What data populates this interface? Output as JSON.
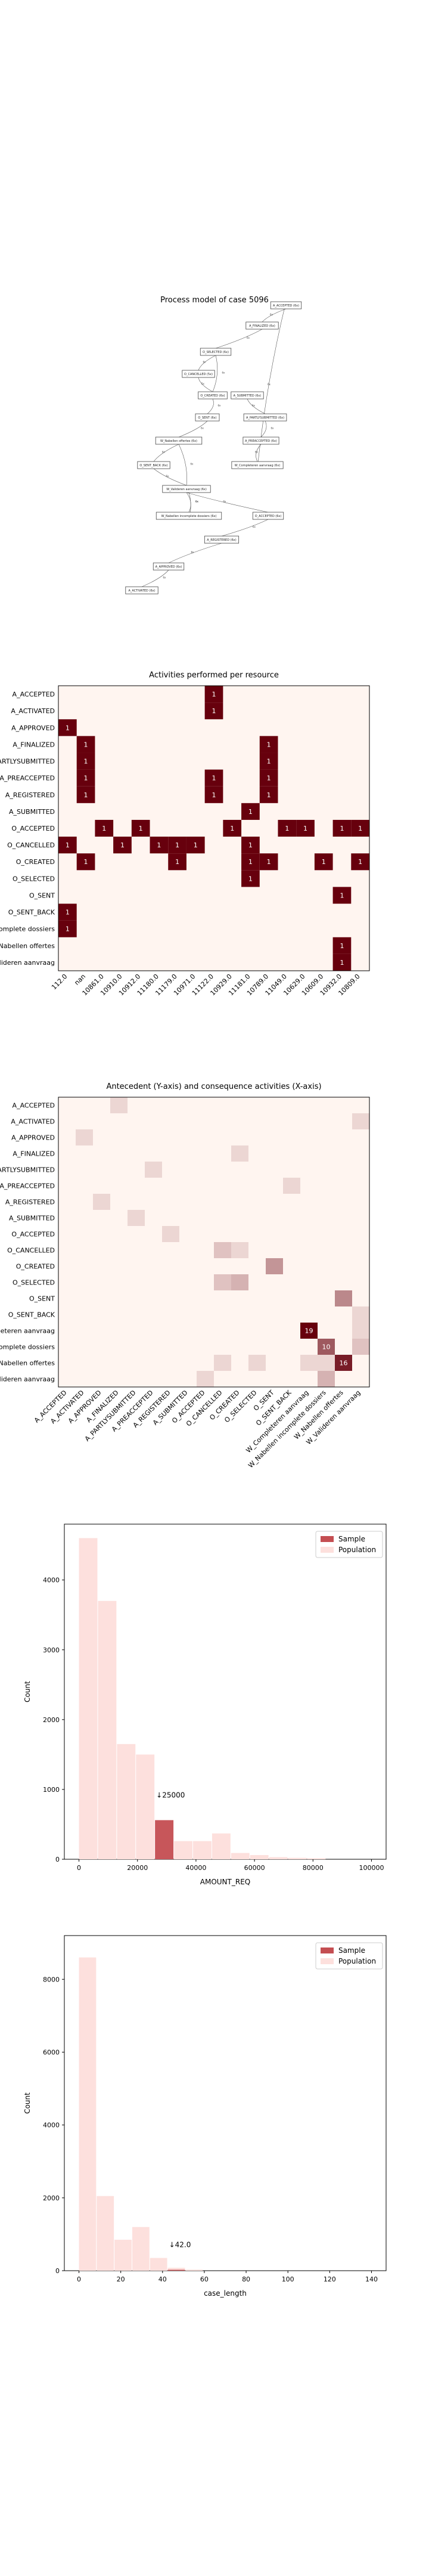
{
  "process_model": {
    "title": "Process model of case 5096",
    "nodes": [
      {
        "id": "n1",
        "label": "A_ACCEPTED (6x)"
      },
      {
        "id": "n2",
        "label": "A_FINALIZED (6x)"
      },
      {
        "id": "n3",
        "label": "O_SELECTED (6x)"
      },
      {
        "id": "n4",
        "label": "O_CANCELLED (5x)"
      },
      {
        "id": "n5",
        "label": "O_CREATED (6x)"
      },
      {
        "id": "n6",
        "label": "O_SENT (6x)"
      },
      {
        "id": "n7",
        "label": "A_SUBMITTED (6x)"
      },
      {
        "id": "n8",
        "label": "A_PARTLYSUBMITTED (6x)"
      },
      {
        "id": "n9",
        "label": "A_PREACCEPTED (6x)"
      },
      {
        "id": "n10",
        "label": "W_Nabellen offertes (6x)"
      },
      {
        "id": "n11",
        "label": "W_Completeren aanvraag (6x)"
      },
      {
        "id": "n12",
        "label": "O_SENT_BACK (6x)"
      },
      {
        "id": "n13",
        "label": "W_Valideren aanvraag (6x)"
      },
      {
        "id": "n14",
        "label": "W_Nabellen incomplete dossiers (6x)"
      },
      {
        "id": "n15",
        "label": "O_ACCEPTED (6x)"
      },
      {
        "id": "n16",
        "label": "A_REGISTERED (6x)"
      },
      {
        "id": "n17",
        "label": "A_APPROVED (6x)"
      },
      {
        "id": "n18",
        "label": "A_ACTIVATED (6x)"
      }
    ],
    "edges": [
      {
        "from": "n1",
        "to": "n2",
        "label": "6x"
      },
      {
        "from": "n2",
        "to": "n3",
        "label": "6x"
      },
      {
        "from": "n3",
        "to": "n4",
        "label": "6x"
      },
      {
        "from": "n3",
        "to": "n5",
        "label": "6x"
      },
      {
        "from": "n4",
        "to": "n5",
        "label": "5x"
      },
      {
        "from": "n5",
        "to": "n6",
        "label": "6x"
      },
      {
        "from": "n7",
        "to": "n8",
        "label": "6x"
      },
      {
        "from": "n8",
        "to": "n9",
        "label": "6x"
      },
      {
        "from": "n9",
        "to": "n11",
        "label": "6x"
      },
      {
        "from": "n6",
        "to": "n10",
        "label": "6x"
      },
      {
        "from": "n10",
        "to": "n12",
        "label": "6x"
      },
      {
        "from": "n10",
        "to": "n13",
        "label": "6x"
      },
      {
        "from": "n12",
        "to": "n13",
        "label": "6x"
      },
      {
        "from": "n13",
        "to": "n14",
        "label": "6x"
      },
      {
        "from": "n13",
        "to": "n15",
        "label": "6x"
      },
      {
        "from": "n15",
        "to": "n16",
        "label": "6x"
      },
      {
        "from": "n16",
        "to": "n17",
        "label": "6x"
      },
      {
        "from": "n17",
        "to": "n18",
        "label": "6x"
      },
      {
        "from": "n11",
        "to": "n1",
        "label": "6x"
      },
      {
        "from": "n14",
        "to": "n13",
        "label": "6x"
      }
    ]
  },
  "chart_data": [
    {
      "type": "heatmap",
      "title": "Activities performed per resource",
      "rows": [
        "A_ACCEPTED",
        "A_ACTIVATED",
        "A_APPROVED",
        "A_FINALIZED",
        "A_PARTLYSUBMITTED",
        "A_PREACCEPTED",
        "A_REGISTERED",
        "A_SUBMITTED",
        "O_ACCEPTED",
        "O_CANCELLED",
        "O_CREATED",
        "O_SELECTED",
        "O_SENT",
        "O_SENT_BACK",
        "W_Nabellen incomplete dossiers",
        "W_Nabellen offertes",
        "W_Valideren aanvraag"
      ],
      "columns": [
        "112.0",
        "nan",
        "10861.0",
        "10910.0",
        "10912.0",
        "11180.0",
        "11179.0",
        "10971.0",
        "11122.0",
        "10929.0",
        "11181.0",
        "10789.0",
        "11049.0",
        "10629.0",
        "10609.0",
        "10932.0",
        "10809.0"
      ],
      "cells": [
        {
          "r": 0,
          "c": 8,
          "v": 1
        },
        {
          "r": 1,
          "c": 8,
          "v": 1
        },
        {
          "r": 2,
          "c": 0,
          "v": 1
        },
        {
          "r": 3,
          "c": 1,
          "v": 1
        },
        {
          "r": 3,
          "c": 11,
          "v": 1
        },
        {
          "r": 4,
          "c": 1,
          "v": 1
        },
        {
          "r": 4,
          "c": 11,
          "v": 1
        },
        {
          "r": 5,
          "c": 1,
          "v": 1
        },
        {
          "r": 5,
          "c": 8,
          "v": 1
        },
        {
          "r": 5,
          "c": 11,
          "v": 1
        },
        {
          "r": 6,
          "c": 1,
          "v": 1
        },
        {
          "r": 6,
          "c": 8,
          "v": 1
        },
        {
          "r": 6,
          "c": 11,
          "v": 1
        },
        {
          "r": 7,
          "c": 10,
          "v": 1
        },
        {
          "r": 8,
          "c": 2,
          "v": 1
        },
        {
          "r": 8,
          "c": 4,
          "v": 1
        },
        {
          "r": 8,
          "c": 9,
          "v": 1
        },
        {
          "r": 8,
          "c": 12,
          "v": 1
        },
        {
          "r": 8,
          "c": 13,
          "v": 1
        },
        {
          "r": 8,
          "c": 15,
          "v": 1
        },
        {
          "r": 8,
          "c": 16,
          "v": 1
        },
        {
          "r": 9,
          "c": 0,
          "v": 1
        },
        {
          "r": 9,
          "c": 3,
          "v": 1
        },
        {
          "r": 9,
          "c": 5,
          "v": 1
        },
        {
          "r": 9,
          "c": 6,
          "v": 1
        },
        {
          "r": 9,
          "c": 7,
          "v": 1
        },
        {
          "r": 9,
          "c": 10,
          "v": 1
        },
        {
          "r": 10,
          "c": 1,
          "v": 1
        },
        {
          "r": 10,
          "c": 6,
          "v": 1
        },
        {
          "r": 10,
          "c": 10,
          "v": 1
        },
        {
          "r": 10,
          "c": 11,
          "v": 1
        },
        {
          "r": 10,
          "c": 14,
          "v": 1
        },
        {
          "r": 10,
          "c": 16,
          "v": 1
        },
        {
          "r": 11,
          "c": 10,
          "v": 1
        },
        {
          "r": 12,
          "c": 15,
          "v": 1
        },
        {
          "r": 13,
          "c": 0,
          "v": 1
        },
        {
          "r": 14,
          "c": 0,
          "v": 1
        },
        {
          "r": 15,
          "c": 15,
          "v": 1
        },
        {
          "r": 16,
          "c": 15,
          "v": 1
        }
      ],
      "row_tick_labels": [
        "A_ACCEPTED",
        "A_ACTIVATED",
        "A_APPROVED",
        "A_FINALIZED",
        "A_PARTLYSUBMITTED",
        "A_PREACCEPTED",
        "A_REGISTERED",
        "A_SUBMITTED",
        "O_ACCEPTED",
        "O_CANCELLED",
        "O_CREATED",
        "O_SELECTED",
        "O_SENT",
        "O_SENT_BACK",
        "W_Nabellen incomplete dossiers",
        "W_Nabellen offertes",
        "W_Valideren aanvraag"
      ]
    },
    {
      "type": "heatmap",
      "title": "Antecedent (Y-axis) and consequence activities (X-axis)",
      "rows": [
        "A_ACCEPTED",
        "A_ACTIVATED",
        "A_APPROVED",
        "A_FINALIZED",
        "A_PARTLYSUBMITTED",
        "A_PREACCEPTED",
        "A_REGISTERED",
        "A_SUBMITTED",
        "O_ACCEPTED",
        "O_CANCELLED",
        "O_CREATED",
        "O_SELECTED",
        "O_SENT",
        "O_SENT_BACK",
        "W_Completeren aanvraag",
        "W_Nabellen incomplete dossiers",
        "W_Nabellen offertes",
        "W_Valideren aanvraag"
      ],
      "columns": [
        "A_ACCEPTED",
        "A_ACTIVATED",
        "A_APPROVED",
        "A_FINALIZED",
        "A_PARTLYSUBMITTED",
        "A_PREACCEPTED",
        "A_REGISTERED",
        "A_SUBMITTED",
        "O_ACCEPTED",
        "O_CANCELLED",
        "O_CREATED",
        "O_SELECTED",
        "O_SENT",
        "O_SENT_BACK",
        "W_Completeren aanvraag",
        "W_Nabellen incomplete dossiers",
        "W_Nabellen offertes",
        "W_Valideren aanvraag"
      ],
      "cells": [
        {
          "r": 0,
          "c": 3,
          "v": 1
        },
        {
          "r": 1,
          "c": 17,
          "v": 1
        },
        {
          "r": 2,
          "c": 1,
          "v": 1
        },
        {
          "r": 3,
          "c": 10,
          "v": 1
        },
        {
          "r": 4,
          "c": 5,
          "v": 1
        },
        {
          "r": 5,
          "c": 13,
          "v": 1
        },
        {
          "r": 6,
          "c": 2,
          "v": 1
        },
        {
          "r": 7,
          "c": 4,
          "v": 1
        },
        {
          "r": 8,
          "c": 6,
          "v": 1
        },
        {
          "r": 9,
          "c": 9,
          "v": 2
        },
        {
          "r": 9,
          "c": 10,
          "v": 1
        },
        {
          "r": 10,
          "c": 12,
          "v": 5
        },
        {
          "r": 11,
          "c": 9,
          "v": 2
        },
        {
          "r": 11,
          "c": 10,
          "v": 3
        },
        {
          "r": 12,
          "c": 16,
          "v": 6
        },
        {
          "r": 13,
          "c": 17,
          "v": 1
        },
        {
          "r": 14,
          "c": 14,
          "v": 19
        },
        {
          "r": 14,
          "c": 17,
          "v": 1
        },
        {
          "r": 15,
          "c": 15,
          "v": 10
        },
        {
          "r": 15,
          "c": 17,
          "v": 2
        },
        {
          "r": 16,
          "c": 9,
          "v": 1
        },
        {
          "r": 16,
          "c": 11,
          "v": 1
        },
        {
          "r": 16,
          "c": 14,
          "v": 1
        },
        {
          "r": 16,
          "c": 15,
          "v": 1
        },
        {
          "r": 16,
          "c": 16,
          "v": 16
        },
        {
          "r": 17,
          "c": 8,
          "v": 1
        },
        {
          "r": 17,
          "c": 15,
          "v": 3
        }
      ],
      "annotations_shown": [
        19,
        10,
        16
      ],
      "row_tick_labels": [
        "A_ACCEPTED",
        "A_ACTIVATED",
        "A_APPROVED",
        "A_FINALIZED",
        "A_PARTLYSUBMITTED",
        "A_PREACCEPTED",
        "A_REGISTERED",
        "A_SUBMITTED",
        "O_ACCEPTED",
        "O_CANCELLED",
        "O_CREATED",
        "O_SELECTED",
        "O_SENT",
        "O_SENT_BACK",
        "W_Completeren aanvraag",
        "W_Nabellen incomplete dossiers",
        "W_Nabellen offertes",
        "W_Valideren aanvraag"
      ],
      "col_tick_labels": [
        "A_ACCEPTED",
        "A_ACTIVATED",
        "A_APPROVED",
        "A_FINALIZED",
        "A_PARTLYSUBMITTED",
        "A_PREACCEPTED",
        "A_REGISTERED",
        "A_SUBMITTED",
        "O_ACCEPTED",
        "O_CANCELLED",
        "O_CREATED",
        "O_SELECTED",
        "O_SENT",
        "O_SENT_BACK",
        "W_Completeren aanvraag",
        "W_Nabellen incomplete dossiers",
        "W_Nabellen offertes",
        "W_Valideren aanvraag"
      ]
    },
    {
      "type": "bar",
      "title": "",
      "xlabel": "AMOUNT_REQ",
      "ylabel": "Count",
      "xlim": [
        -5000,
        105000
      ],
      "ylim": [
        0,
        4800
      ],
      "xticks": [
        "0",
        "20000",
        "40000",
        "60000",
        "80000",
        "100000"
      ],
      "yticks": [
        "0",
        "1000",
        "2000",
        "3000",
        "4000"
      ],
      "bin_width": 6500,
      "series": [
        {
          "name": "Population",
          "color": "#fde0dd",
          "bins": [
            {
              "x": 0,
              "v": 4600
            },
            {
              "x": 6500,
              "v": 3700
            },
            {
              "x": 13000,
              "v": 1650
            },
            {
              "x": 19500,
              "v": 1500
            },
            {
              "x": 26000,
              "v": 560
            },
            {
              "x": 32500,
              "v": 260
            },
            {
              "x": 39000,
              "v": 260
            },
            {
              "x": 45500,
              "v": 370
            },
            {
              "x": 52000,
              "v": 90
            },
            {
              "x": 58500,
              "v": 60
            },
            {
              "x": 65000,
              "v": 30
            },
            {
              "x": 71500,
              "v": 20
            },
            {
              "x": 78000,
              "v": 15
            }
          ]
        },
        {
          "name": "Sample",
          "color": "#c44e52",
          "bins": [
            {
              "x": 26000,
              "v": 560
            }
          ]
        }
      ],
      "annotation": "↓25000",
      "legend": "top-right"
    },
    {
      "type": "bar",
      "title": "",
      "xlabel": "case_length",
      "ylabel": "Count",
      "xlim": [
        -7,
        147
      ],
      "ylim": [
        0,
        9200
      ],
      "xticks": [
        "0",
        "20",
        "40",
        "60",
        "80",
        "100",
        "120",
        "140"
      ],
      "yticks": [
        "0",
        "2000",
        "4000",
        "6000",
        "8000"
      ],
      "bin_width": 8.5,
      "series": [
        {
          "name": "Population",
          "color": "#fde0dd",
          "bins": [
            {
              "x": 0,
              "v": 8600
            },
            {
              "x": 8.5,
              "v": 2050
            },
            {
              "x": 17,
              "v": 850
            },
            {
              "x": 25.5,
              "v": 1200
            },
            {
              "x": 34,
              "v": 350
            },
            {
              "x": 42.5,
              "v": 80
            },
            {
              "x": 51,
              "v": 30
            }
          ]
        },
        {
          "name": "Sample",
          "color": "#c44e52",
          "bins": [
            {
              "x": 42.5,
              "v": 25
            }
          ]
        }
      ],
      "annotation": "↓42.0",
      "legend": "top-right"
    }
  ]
}
